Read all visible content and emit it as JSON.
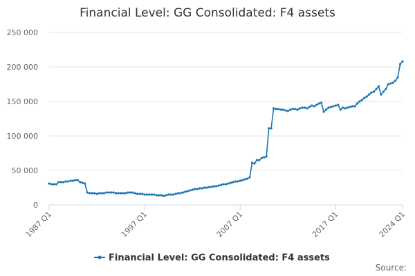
{
  "chart_data": {
    "type": "line",
    "title": "Financial Level: GG Consolidated: F4 assets",
    "categories": [
      "1987 Q1",
      "1987 Q2",
      "1987 Q3",
      "1987 Q4",
      "1988 Q1",
      "1988 Q2",
      "1988 Q3",
      "1988 Q4",
      "1989 Q1",
      "1989 Q2",
      "1989 Q3",
      "1989 Q4",
      "1990 Q1",
      "1990 Q2",
      "1990 Q3",
      "1990 Q4",
      "1991 Q1",
      "1991 Q2",
      "1991 Q3",
      "1991 Q4",
      "1992 Q1",
      "1992 Q2",
      "1992 Q3",
      "1992 Q4",
      "1993 Q1",
      "1993 Q2",
      "1993 Q3",
      "1993 Q4",
      "1994 Q1",
      "1994 Q2",
      "1994 Q3",
      "1994 Q4",
      "1995 Q1",
      "1995 Q2",
      "1995 Q3",
      "1995 Q4",
      "1996 Q1",
      "1996 Q2",
      "1996 Q3",
      "1996 Q4",
      "1997 Q1",
      "1997 Q2",
      "1997 Q3",
      "1997 Q4",
      "1998 Q1",
      "1998 Q2",
      "1998 Q3",
      "1998 Q4",
      "1999 Q1",
      "1999 Q2",
      "1999 Q3",
      "1999 Q4",
      "2000 Q1",
      "2000 Q2",
      "2000 Q3",
      "2000 Q4",
      "2001 Q1",
      "2001 Q2",
      "2001 Q3",
      "2001 Q4",
      "2002 Q1",
      "2002 Q2",
      "2002 Q3",
      "2002 Q4",
      "2003 Q1",
      "2003 Q2",
      "2003 Q3",
      "2003 Q4",
      "2004 Q1",
      "2004 Q2",
      "2004 Q3",
      "2004 Q4",
      "2005 Q1",
      "2005 Q2",
      "2005 Q3",
      "2005 Q4",
      "2006 Q1",
      "2006 Q2",
      "2006 Q3",
      "2006 Q4",
      "2007 Q1",
      "2007 Q2",
      "2007 Q3",
      "2007 Q4",
      "2008 Q1",
      "2008 Q2",
      "2008 Q3",
      "2008 Q4",
      "2009 Q1",
      "2009 Q2",
      "2009 Q3",
      "2009 Q4",
      "2010 Q1",
      "2010 Q2",
      "2010 Q3",
      "2010 Q4",
      "2011 Q1",
      "2011 Q2",
      "2011 Q3",
      "2011 Q4",
      "2012 Q1",
      "2012 Q2",
      "2012 Q3",
      "2012 Q4",
      "2013 Q1",
      "2013 Q2",
      "2013 Q3",
      "2013 Q4",
      "2014 Q1",
      "2014 Q2",
      "2014 Q3",
      "2014 Q4",
      "2015 Q1",
      "2015 Q2",
      "2015 Q3",
      "2015 Q4",
      "2016 Q1",
      "2016 Q2",
      "2016 Q3",
      "2016 Q4",
      "2017 Q1",
      "2017 Q2",
      "2017 Q3",
      "2017 Q4",
      "2018 Q1",
      "2018 Q2",
      "2018 Q3",
      "2018 Q4",
      "2019 Q1",
      "2019 Q2",
      "2019 Q3",
      "2019 Q4",
      "2020 Q1",
      "2020 Q2",
      "2020 Q3",
      "2020 Q4",
      "2021 Q1",
      "2021 Q2",
      "2021 Q3",
      "2021 Q4",
      "2022 Q1",
      "2022 Q2",
      "2022 Q3",
      "2022 Q4",
      "2023 Q1",
      "2023 Q2",
      "2023 Q3",
      "2023 Q4",
      "2024 Q1"
    ],
    "series": [
      {
        "name": "Financial Level: GG Consolidated: F4 assets",
        "color": "#1a74b0",
        "values": [
          31000,
          30000,
          30000,
          30000,
          33000,
          33000,
          33000,
          34000,
          34000,
          35000,
          35000,
          36000,
          36000,
          33000,
          32000,
          31000,
          18000,
          17000,
          17000,
          17000,
          16000,
          17000,
          17000,
          17000,
          18000,
          18000,
          18000,
          18000,
          17000,
          17000,
          17000,
          17000,
          17000,
          18000,
          18000,
          18000,
          17000,
          16000,
          16000,
          16000,
          15000,
          15000,
          15000,
          15000,
          15000,
          14000,
          14000,
          14000,
          13000,
          14000,
          15000,
          15000,
          15000,
          16000,
          17000,
          17000,
          18000,
          19000,
          20000,
          21000,
          22000,
          23000,
          23000,
          24000,
          24000,
          25000,
          25000,
          26000,
          26000,
          27000,
          27000,
          28000,
          29000,
          30000,
          30000,
          31000,
          32000,
          33000,
          34000,
          34000,
          35000,
          36000,
          37000,
          38000,
          40000,
          61000,
          60000,
          65000,
          65000,
          68000,
          69000,
          70000,
          111000,
          111000,
          140000,
          139000,
          139000,
          138000,
          138000,
          137000,
          136000,
          138000,
          139000,
          139000,
          138000,
          140000,
          141000,
          141000,
          140000,
          142000,
          144000,
          143000,
          145000,
          147000,
          148000,
          135000,
          138000,
          141000,
          142000,
          143000,
          144000,
          145000,
          138000,
          141000,
          140000,
          141000,
          142000,
          143000,
          143000,
          147000,
          150000,
          152000,
          155000,
          157000,
          160000,
          163000,
          164000,
          168000,
          172000,
          160000,
          164000,
          168000,
          175000,
          176000,
          177000,
          180000,
          185000,
          204000,
          208000
        ]
      }
    ],
    "xticks": [
      "1987 Q1",
      "1997 Q1",
      "2007 Q1",
      "2017 Q1",
      "2024 Q1"
    ],
    "ylim": [
      0,
      250000
    ],
    "yticks": [
      0,
      {
        "value": 50000,
        "label": "50 000"
      },
      {
        "value": 100000,
        "label": "100 000"
      },
      {
        "value": 150000,
        "label": "150 000"
      },
      {
        "value": 200000,
        "label": "200 000"
      },
      {
        "value": 250000,
        "label": "250 000"
      }
    ],
    "grid": true,
    "source": "Source:"
  }
}
